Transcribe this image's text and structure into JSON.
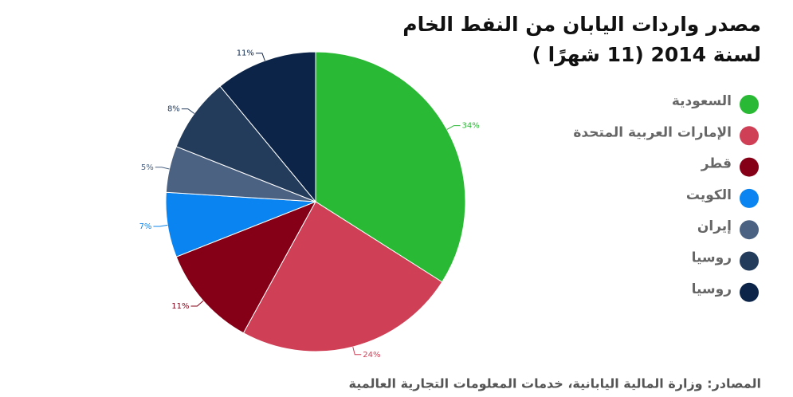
{
  "chart_data": {
    "type": "pie",
    "title": "مصدر واردات اليابان من النفط الخام",
    "subtitle": "لسنة 2014 (11 شهرًا )",
    "categories": [
      "السعودية",
      "الإمارات العربية المتحدة",
      "قطر",
      "الكويت",
      "إيران",
      "روسيا",
      "روسيا"
    ],
    "values": [
      34,
      24,
      11,
      7,
      5,
      8,
      11
    ],
    "value_labels": [
      "34%",
      "24%",
      "11%",
      "7%",
      "5%",
      "8%",
      "11%"
    ],
    "colors": [
      "#2ab934",
      "#cf3f55",
      "#850016",
      "#0a84f0",
      "#4b6282",
      "#243c5c",
      "#0b2448"
    ],
    "source": "المصادر: وزارة المالية اليابانية، خدمات المعلومات التجارية العالمية"
  }
}
